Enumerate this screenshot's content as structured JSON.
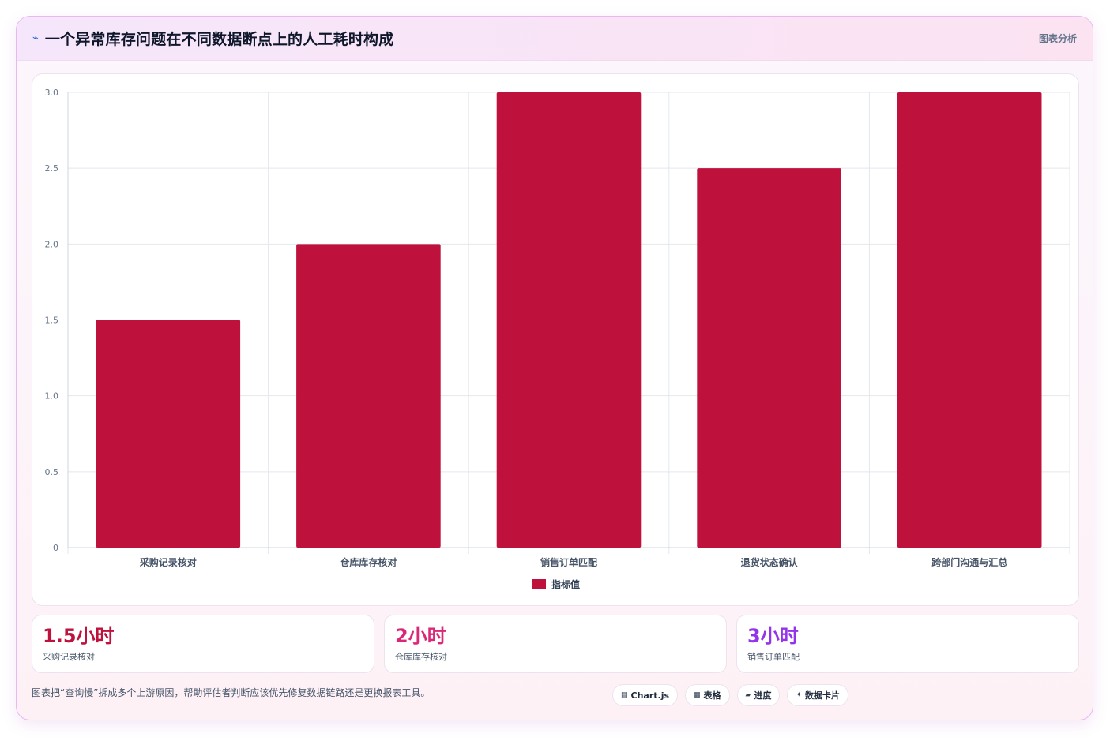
{
  "header": {
    "icon": "⌁",
    "title": "一个异常库存问题在不同数据断点上的人工耗时构成",
    "tag": "图表分析"
  },
  "chart_data": {
    "type": "bar",
    "categories": [
      "采购记录核对",
      "仓库库存核对",
      "销售订单匹配",
      "退货状态确认",
      "跨部门沟通与汇总"
    ],
    "series": [
      {
        "name": "指标值",
        "values": [
          1.5,
          2,
          3,
          2.5,
          3
        ],
        "color": "#be123c"
      }
    ],
    "ylim": [
      0,
      3
    ],
    "yticks": [
      "0",
      "0.5",
      "1.0",
      "1.5",
      "2.0",
      "2.5",
      "3.0"
    ],
    "grid": true,
    "legend": "bottom"
  },
  "stats": [
    {
      "value": "1.5小时",
      "label": "采购记录核对",
      "color": "#be123c"
    },
    {
      "value": "2小时",
      "label": "仓库库存核对",
      "color": "#db2777"
    },
    {
      "value": "3小时",
      "label": "销售订单匹配",
      "color": "#9333ea"
    }
  ],
  "footnote": "图表把“查询慢”拆成多个上游原因，帮助评估者判断应该优先修复数据链路还是更换报表工具。",
  "pills": [
    {
      "icon": "▤",
      "label": "Chart.js"
    },
    {
      "icon": "▦",
      "label": "表格"
    },
    {
      "icon": "▰",
      "label": "进度"
    },
    {
      "icon": "✦",
      "label": "数据卡片"
    }
  ]
}
